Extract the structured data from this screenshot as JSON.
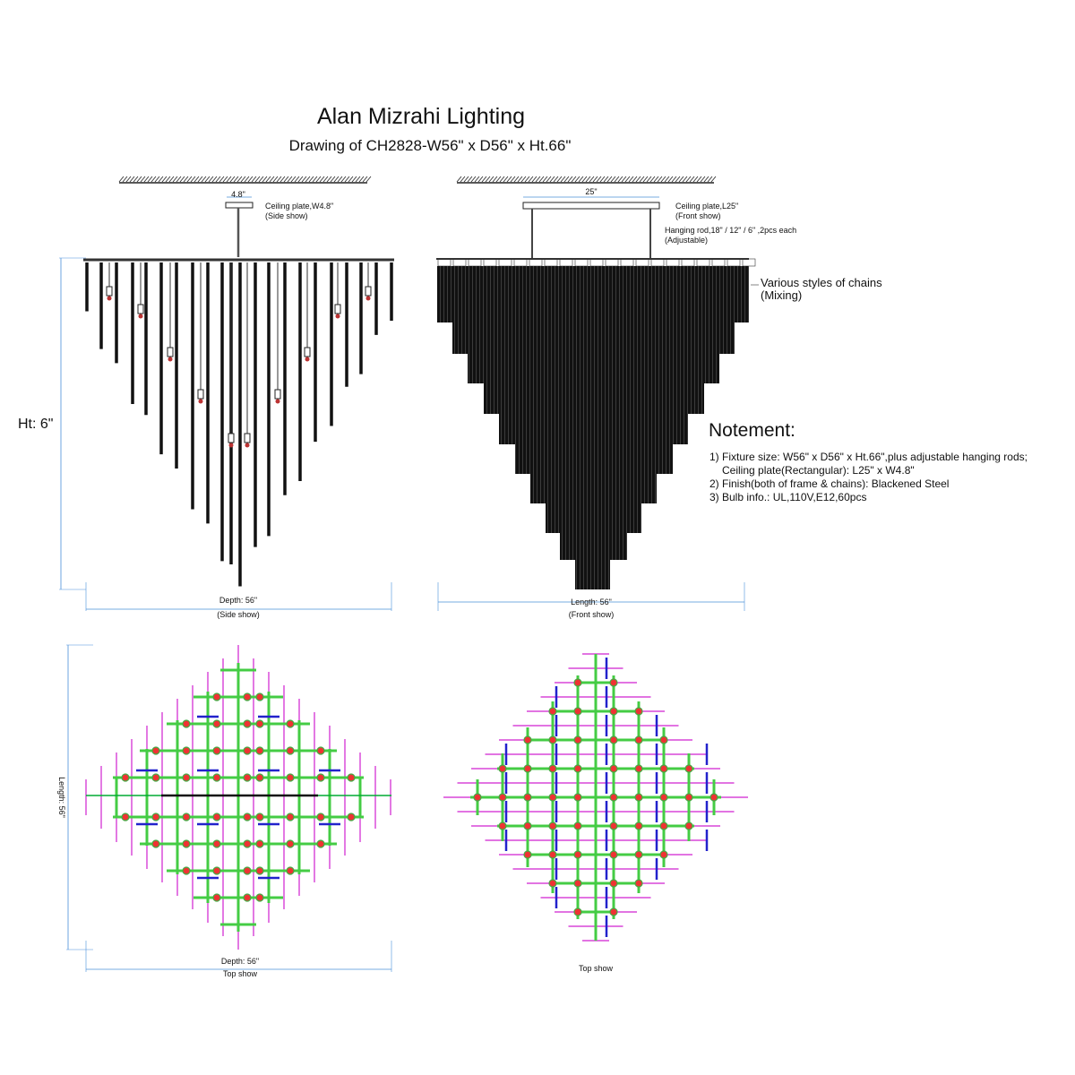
{
  "header": {
    "title": "Alan Mizrahi Lighting",
    "subtitle": "Drawing of CH2828-W56\" x D56\" x Ht.66\""
  },
  "side_view": {
    "plate_width": "4.8\"",
    "plate_label": "Ceiling plate,W4.8\"",
    "plate_note": "(Side show)",
    "height_label": "Ht: 6\"",
    "depth_label": "Depth: 56\"",
    "view_label": "(Side show)"
  },
  "front_view": {
    "plate_width": "25\"",
    "plate_label": "Ceiling plate,L25\"",
    "plate_note": "(Front show)",
    "rod_label": "Hanging rod,18\" / 12\" / 6\" ,2pcs each",
    "rod_note": "(Adjustable)",
    "chain_label": "Various styles of chains",
    "chain_note": "(Mixing)",
    "length_label": "Length: 56\"",
    "view_label": "(Front show)"
  },
  "notes": {
    "heading": "Notement:",
    "lines": [
      "1) Fixture size: W56\" x D56\" x Ht.66\",plus adjustable hanging rods;",
      "Ceiling plate(Rectangular): L25\" x W4.8\"",
      "2) Finish(both of frame & chains): Blackened Steel",
      "3) Bulb info.: UL,110V,E12,60pcs"
    ]
  },
  "top_view_side": {
    "length_label": "Length: 56\"",
    "depth_label": "Depth: 56\"",
    "view_label": "Top show"
  },
  "top_view_front": {
    "view_label": "Top show"
  }
}
